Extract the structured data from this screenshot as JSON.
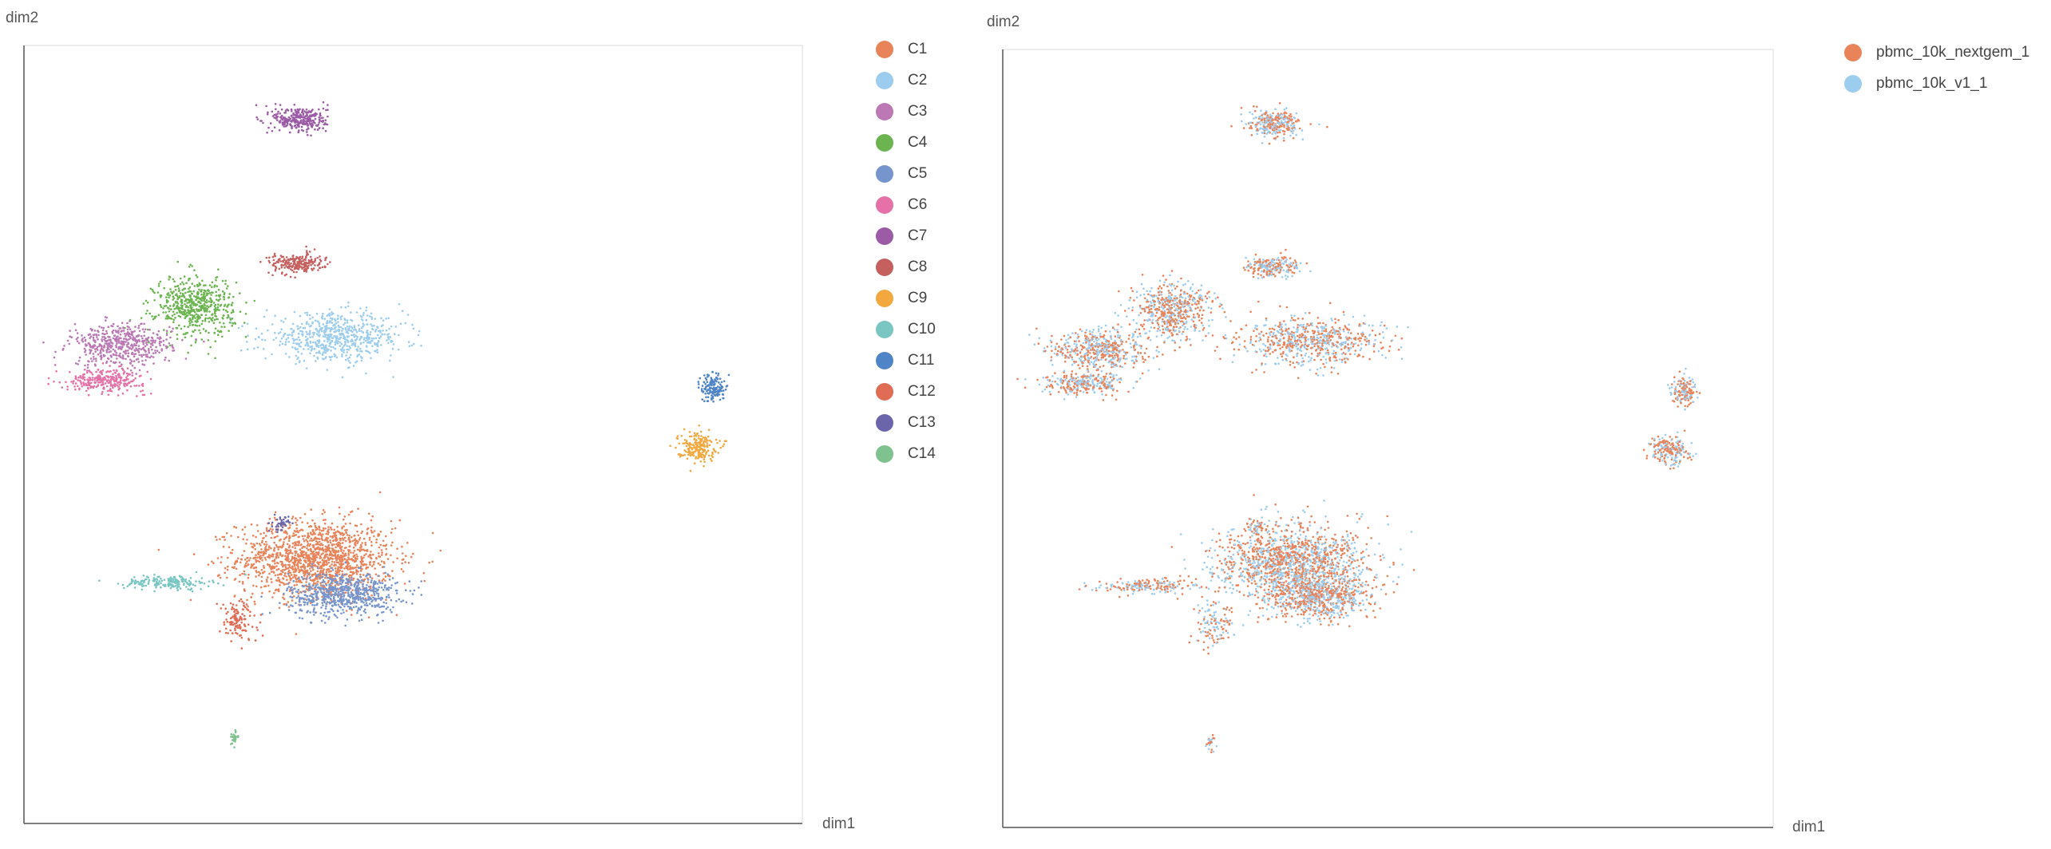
{
  "chart_data": [
    {
      "type": "scatter",
      "xlabel": "dim1",
      "ylabel": "dim2",
      "grid": false,
      "legend_position": "right",
      "xlim": [
        0,
        100
      ],
      "ylim": [
        0,
        100
      ],
      "legend": [
        {
          "name": "C1",
          "color": "#E8835A"
        },
        {
          "name": "C2",
          "color": "#9DCDEE"
        },
        {
          "name": "C3",
          "color": "#BB78B5"
        },
        {
          "name": "C4",
          "color": "#6BB450"
        },
        {
          "name": "C5",
          "color": "#7795CD"
        },
        {
          "name": "C6",
          "color": "#E671A8"
        },
        {
          "name": "C7",
          "color": "#9B5BA5"
        },
        {
          "name": "C8",
          "color": "#C6605F"
        },
        {
          "name": "C9",
          "color": "#F2A83E"
        },
        {
          "name": "C10",
          "color": "#79C6C2"
        },
        {
          "name": "C11",
          "color": "#4F84C6"
        },
        {
          "name": "C12",
          "color": "#E06C55"
        },
        {
          "name": "C13",
          "color": "#6B66AC"
        },
        {
          "name": "C14",
          "color": "#80C28F"
        }
      ],
      "clusters": [
        {
          "name": "C1",
          "color": "#E8835A",
          "cx": 37.5,
          "cy": 34.0,
          "rx": 10.0,
          "ry": 5.0,
          "n": 1500
        },
        {
          "name": "C5",
          "color": "#7795CD",
          "cx": 41.0,
          "cy": 29.5,
          "rx": 7.0,
          "ry": 2.8,
          "n": 650
        },
        {
          "name": "C10",
          "color": "#79C6C2",
          "cx": 18.5,
          "cy": 31.0,
          "rx": 5.5,
          "ry": 0.9,
          "n": 180
        },
        {
          "name": "C12",
          "color": "#E06C55",
          "cx": 27.5,
          "cy": 26.0,
          "rx": 2.5,
          "ry": 2.8,
          "n": 120
        },
        {
          "name": "C13",
          "color": "#6B66AC",
          "cx": 33.0,
          "cy": 38.5,
          "rx": 1.0,
          "ry": 1.0,
          "n": 40
        },
        {
          "name": "C14",
          "color": "#80C28F",
          "cx": 27.0,
          "cy": 11.0,
          "rx": 0.6,
          "ry": 1.0,
          "n": 25
        },
        {
          "name": "C2",
          "color": "#9DCDEE",
          "cx": 40.0,
          "cy": 62.5,
          "rx": 9.0,
          "ry": 3.0,
          "n": 650
        },
        {
          "name": "C4",
          "color": "#6BB450",
          "cx": 22.0,
          "cy": 66.5,
          "rx": 5.0,
          "ry": 3.8,
          "n": 550
        },
        {
          "name": "C3",
          "color": "#BB78B5",
          "cx": 12.5,
          "cy": 61.5,
          "rx": 6.5,
          "ry": 2.6,
          "n": 500
        },
        {
          "name": "C6",
          "color": "#E671A8",
          "cx": 10.5,
          "cy": 57.0,
          "rx": 5.0,
          "ry": 1.4,
          "n": 280
        },
        {
          "name": "C8",
          "color": "#C6605F",
          "cx": 35.0,
          "cy": 72.0,
          "rx": 3.5,
          "ry": 1.3,
          "n": 220
        },
        {
          "name": "C7",
          "color": "#9B5BA5",
          "cx": 35.5,
          "cy": 90.5,
          "rx": 3.5,
          "ry": 1.7,
          "n": 300
        },
        {
          "name": "C11",
          "color": "#4F84C6",
          "cx": 88.5,
          "cy": 56.0,
          "rx": 1.5,
          "ry": 1.8,
          "n": 150
        },
        {
          "name": "C9",
          "color": "#F2A83E",
          "cx": 86.5,
          "cy": 48.5,
          "rx": 2.5,
          "ry": 1.8,
          "n": 200
        }
      ]
    },
    {
      "type": "scatter",
      "xlabel": "dim1",
      "ylabel": "dim2",
      "grid": false,
      "legend_position": "right",
      "xlim": [
        0,
        100
      ],
      "ylim": [
        0,
        100
      ],
      "legend": [
        {
          "name": "pbmc_10k_nextgem_1",
          "color": "#E8835A"
        },
        {
          "name": "pbmc_10k_v1_1",
          "color": "#9DCDEE"
        }
      ],
      "series": [
        {
          "name": "pbmc_10k_nextgem_1",
          "color": "#E8835A",
          "fraction": 0.55
        },
        {
          "name": "pbmc_10k_v1_1",
          "color": "#9DCDEE",
          "fraction": 0.45
        }
      ]
    }
  ]
}
